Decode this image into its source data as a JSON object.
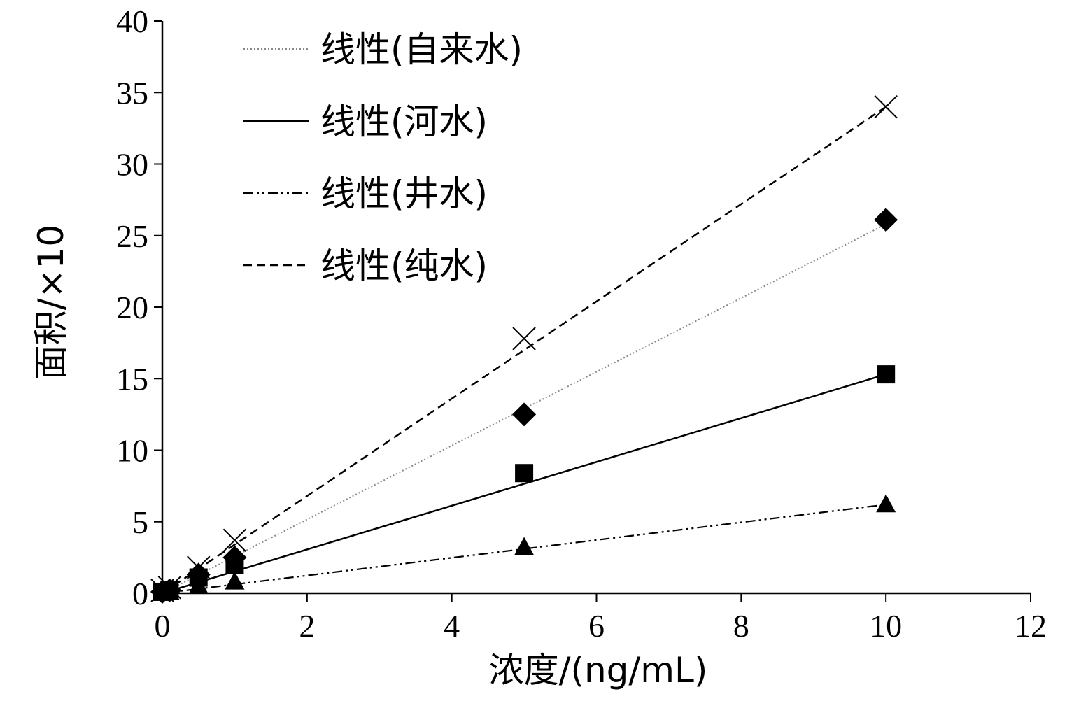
{
  "chart_data": {
    "type": "scatter",
    "title": "",
    "xlabel": "浓度/(ng/mL)",
    "ylabel": "面积/×10",
    "xlim": [
      0,
      12
    ],
    "ylim": [
      0,
      40
    ],
    "x_ticks": [
      0,
      2,
      4,
      6,
      8,
      10,
      12
    ],
    "y_ticks": [
      0,
      5,
      10,
      15,
      20,
      25,
      30,
      35,
      40
    ],
    "grid": false,
    "legend_position": "top-left",
    "series": [
      {
        "name": "线性(自来水)",
        "marker": "diamond",
        "line_style": "dotted",
        "color": "#888888",
        "x": [
          0,
          0.1,
          0.5,
          1,
          5,
          10
        ],
        "y": [
          0.1,
          0.2,
          1.3,
          2.5,
          12.5,
          26.1
        ],
        "fit": [
          0,
          25.8
        ]
      },
      {
        "name": "线性(河水)",
        "marker": "square",
        "line_style": "solid",
        "color": "#000000",
        "x": [
          0,
          0.1,
          0.5,
          1,
          5,
          10
        ],
        "y": [
          0.1,
          0.2,
          1.1,
          2.0,
          8.4,
          15.3
        ],
        "fit": [
          0,
          15.3
        ]
      },
      {
        "name": "线性(井水)",
        "marker": "triangle",
        "line_style": "dash-dot-dot",
        "color": "#000000",
        "x": [
          0,
          0.1,
          0.5,
          1,
          5,
          10
        ],
        "y": [
          0.05,
          0.1,
          0.5,
          0.8,
          3.2,
          6.2
        ],
        "fit": [
          0,
          6.2
        ]
      },
      {
        "name": "线性(纯水)",
        "marker": "x",
        "line_style": "dashed",
        "color": "#000000",
        "x": [
          0,
          0.1,
          0.5,
          1,
          5,
          10
        ],
        "y": [
          0.2,
          0.4,
          1.8,
          3.7,
          17.8,
          34.0
        ],
        "fit": [
          0,
          34.0
        ]
      }
    ]
  }
}
